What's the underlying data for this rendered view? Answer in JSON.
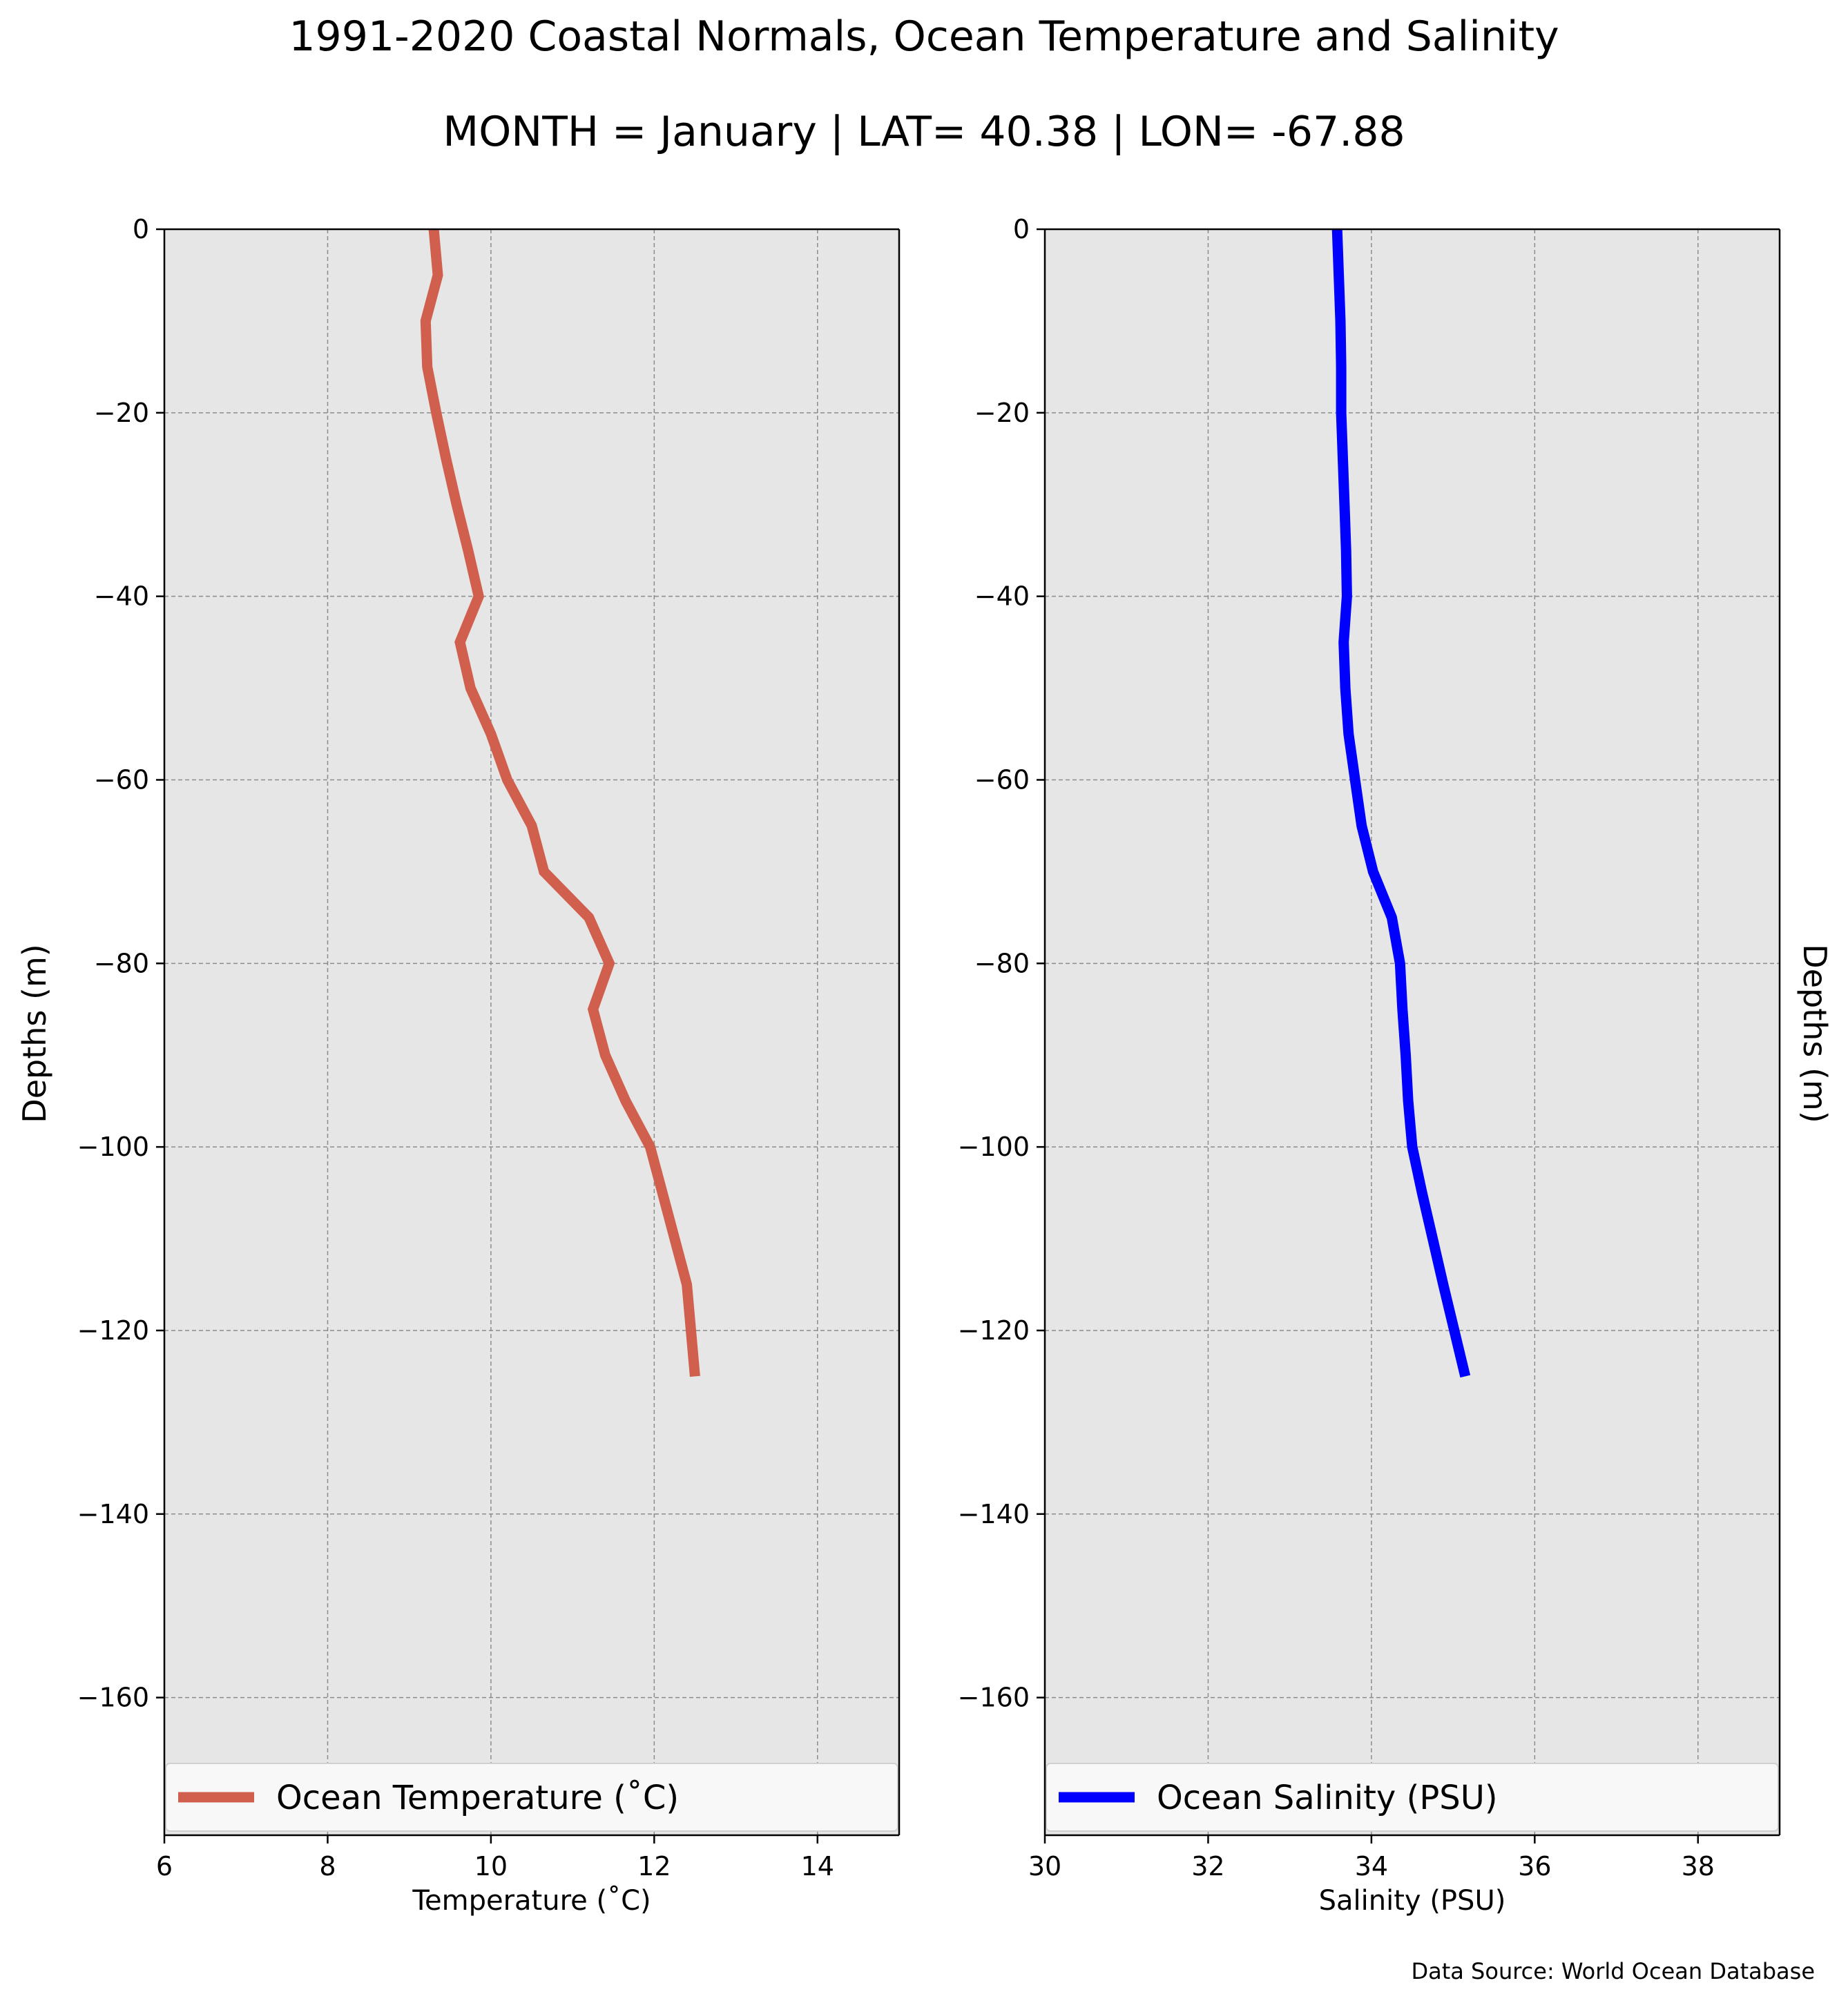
{
  "title": "1991-2020 Coastal Normals, Ocean Temperature and Salinity",
  "subtitle": "MONTH = January | LAT= 40.38 | LON= -67.88",
  "source": "Data Source: World Ocean Database",
  "chart_data": [
    {
      "type": "line",
      "xlabel": "Temperature (˚C)",
      "ylabel": "Depths (m)",
      "xlim": [
        6,
        15
      ],
      "ylim": [
        -175,
        0
      ],
      "xticks": [
        6,
        8,
        10,
        12,
        14
      ],
      "yticks": [
        0,
        -20,
        -40,
        -60,
        -80,
        -100,
        -120,
        -140,
        -160
      ],
      "grid": true,
      "legend": "bottom",
      "series": [
        {
          "name": "Ocean Temperature (˚C)",
          "color": "#d0604d",
          "x": [
            9.3,
            9.35,
            9.2,
            9.22,
            9.33,
            9.45,
            9.58,
            9.72,
            9.85,
            9.62,
            9.75,
            10.0,
            10.2,
            10.5,
            10.65,
            11.2,
            11.45,
            11.25,
            11.4,
            11.65,
            11.95,
            12.1,
            12.25,
            12.4,
            12.5
          ],
          "y": [
            0,
            -5,
            -10,
            -15,
            -20,
            -25,
            -30,
            -35,
            -40,
            -45,
            -50,
            -55,
            -60,
            -65,
            -70,
            -75,
            -80,
            -85,
            -90,
            -95,
            -100,
            -105,
            -110,
            -115,
            -125
          ]
        }
      ]
    },
    {
      "type": "line",
      "xlabel": "Salinity (PSU)",
      "ylabel": "Depths (m)",
      "xlim": [
        30,
        39
      ],
      "ylim": [
        -175,
        0
      ],
      "xticks": [
        30,
        32,
        34,
        36,
        38
      ],
      "yticks": [
        0,
        -20,
        -40,
        -60,
        -80,
        -100,
        -120,
        -140,
        -160
      ],
      "grid": true,
      "legend": "bottom",
      "series": [
        {
          "name": "Ocean Salinity (PSU)",
          "color": "#0000ff",
          "x": [
            33.58,
            33.6,
            33.62,
            33.63,
            33.63,
            33.65,
            33.67,
            33.69,
            33.7,
            33.66,
            33.68,
            33.72,
            33.8,
            33.88,
            34.02,
            34.25,
            34.35,
            34.38,
            34.42,
            34.45,
            34.5,
            34.62,
            34.75,
            34.88,
            35.15
          ],
          "y": [
            0,
            -5,
            -10,
            -15,
            -20,
            -25,
            -30,
            -35,
            -40,
            -45,
            -50,
            -55,
            -60,
            -65,
            -70,
            -75,
            -80,
            -85,
            -90,
            -95,
            -100,
            -105,
            -110,
            -115,
            -125
          ]
        }
      ]
    }
  ]
}
